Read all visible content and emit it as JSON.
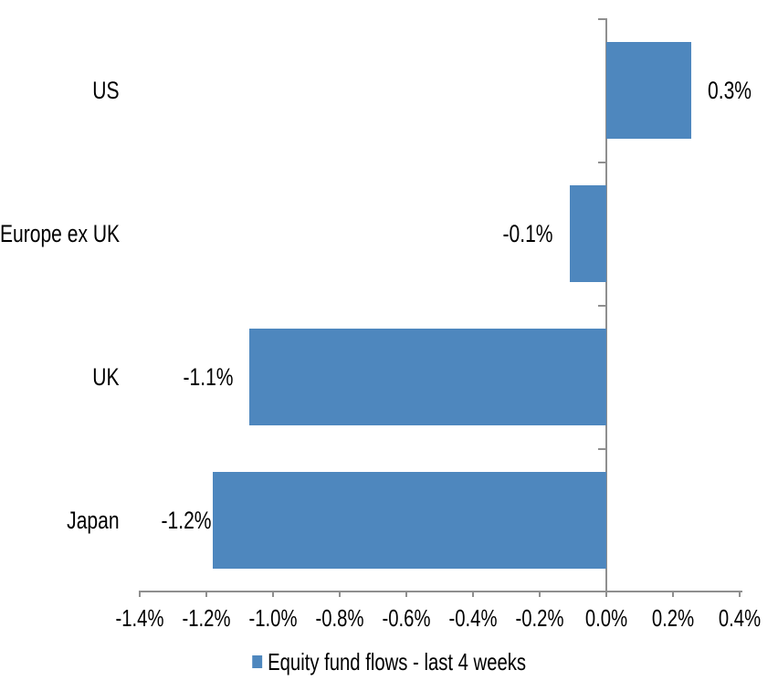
{
  "chart_data": {
    "type": "bar",
    "orientation": "horizontal",
    "title": "",
    "categories": [
      "US",
      "Europe ex UK",
      "UK",
      "Japan"
    ],
    "series": [
      {
        "name": "Equity fund flows - last 4 weeks",
        "values": [
          0.3,
          -0.1,
          -1.1,
          -1.2
        ],
        "values_precise": [
          0.255,
          -0.11,
          -1.07,
          -1.18
        ],
        "data_labels": [
          "0.3%",
          "-0.1%",
          "-1.1%",
          "-1.2%"
        ],
        "color": "#4E87BE"
      }
    ],
    "value_unit": "%",
    "xlim": [
      -1.4,
      0.4
    ],
    "x_ticks": [
      -1.4,
      -1.2,
      -1.0,
      -0.8,
      -0.6,
      -0.4,
      -0.2,
      0.0,
      0.2,
      0.4
    ],
    "x_tick_labels": [
      "-1.4%",
      "-1.2%",
      "-1.0%",
      "-0.8%",
      "-0.6%",
      "-0.4%",
      "-0.2%",
      "0.0%",
      "0.2%",
      "0.4%"
    ],
    "grid": false,
    "legend_position": "bottom",
    "colors": {
      "axis": "#8F8F8F",
      "text": "#000000",
      "background": "#FFFFFF"
    }
  }
}
